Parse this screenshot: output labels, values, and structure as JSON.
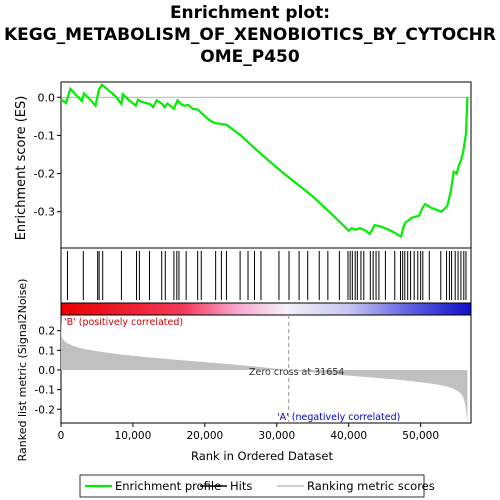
{
  "title_lines": [
    "Enrichment plot:",
    "KEGG_METABOLISM_OF_XENOBIOTICS_BY_CYTOCHR",
    "OME_P450"
  ],
  "colors": {
    "profile": "#00ee00",
    "hits": "#000000",
    "metric_fill": "#c0c0c0",
    "positive_label": "#d20000",
    "negative_label": "#0000c8"
  },
  "chart_data": [
    {
      "type": "line",
      "name": "enrichment-plot",
      "ylabel": "Enrichment score (ES)",
      "xlim": [
        0,
        57000
      ],
      "ylim": [
        -0.395,
        0.04
      ],
      "yticks": [
        0.0,
        -0.1,
        -0.2,
        -0.3
      ],
      "ytick_labels": [
        "0.0",
        "-0.1",
        "-0.2",
        "-0.3"
      ],
      "series": [
        {
          "name": "Enrichment profile",
          "x": [
            0,
            700,
            1300,
            2000,
            2900,
            3200,
            4000,
            4800,
            5100,
            5250,
            5700,
            6200,
            7000,
            7600,
            8400,
            8600,
            9300,
            10400,
            10700,
            11200,
            12400,
            12800,
            13300,
            14100,
            14400,
            14800,
            15700,
            16200,
            16700,
            17100,
            17700,
            18300,
            19000,
            20000,
            20800,
            21500,
            23000,
            25000,
            27000,
            29000,
            31000,
            33000,
            35000,
            37000,
            38500,
            40000,
            40400,
            40900,
            41600,
            42400,
            42900,
            43300,
            43600,
            44300,
            45300,
            46400,
            46800,
            47300,
            47600,
            47900,
            48300,
            48700,
            49300,
            49800,
            50200,
            50600,
            51500,
            52900,
            53700,
            54200,
            54600,
            55000,
            55300,
            55600,
            55900,
            56100,
            56300,
            56450,
            56500
          ],
          "y": [
            -0.005,
            -0.015,
            0.022,
            0.008,
            -0.01,
            0.01,
            -0.005,
            -0.022,
            0.005,
            0.02,
            0.033,
            0.025,
            0.012,
            0.002,
            -0.018,
            0.008,
            -0.005,
            -0.022,
            -0.006,
            -0.012,
            -0.018,
            -0.026,
            -0.008,
            -0.018,
            -0.026,
            -0.016,
            -0.03,
            -0.008,
            -0.018,
            -0.022,
            -0.02,
            -0.03,
            -0.032,
            -0.05,
            -0.062,
            -0.068,
            -0.072,
            -0.1,
            -0.135,
            -0.168,
            -0.2,
            -0.23,
            -0.26,
            -0.295,
            -0.322,
            -0.35,
            -0.343,
            -0.347,
            -0.343,
            -0.35,
            -0.358,
            -0.346,
            -0.335,
            -0.338,
            -0.345,
            -0.355,
            -0.36,
            -0.365,
            -0.34,
            -0.328,
            -0.323,
            -0.316,
            -0.313,
            -0.31,
            -0.292,
            -0.28,
            -0.29,
            -0.3,
            -0.285,
            -0.245,
            -0.195,
            -0.2,
            -0.18,
            -0.165,
            -0.145,
            -0.12,
            -0.095,
            -0.03,
            0.0
          ]
        }
      ]
    },
    {
      "type": "hits",
      "name": "hits-strip",
      "legend": "Hits",
      "x": [
        900,
        3100,
        5100,
        5300,
        5800,
        8400,
        10500,
        10900,
        12300,
        14000,
        14500,
        15700,
        16100,
        16400,
        17400,
        19000,
        19500,
        21500,
        22300,
        23000,
        24900,
        26000,
        26900,
        27800,
        30300,
        31700,
        33100,
        34300,
        35900,
        37100,
        38700,
        39900,
        40200,
        40500,
        40900,
        41200,
        41700,
        42100,
        43000,
        43400,
        43800,
        44200,
        45100,
        46400,
        47200,
        47500,
        47800,
        48200,
        48600,
        49100,
        49600,
        50000,
        50300,
        51200,
        52800,
        53600,
        54000,
        54300,
        54800,
        55200,
        55600,
        56000,
        56300
      ]
    },
    {
      "type": "area",
      "name": "ranked-list-metric",
      "xlabel": "Rank in Ordered Dataset",
      "ylabel": "Ranked list metric (Signal2Noise)",
      "xlim": [
        0,
        57000
      ],
      "ylim": [
        -0.27,
        0.28
      ],
      "xticks": [
        0,
        10000,
        20000,
        30000,
        40000,
        50000
      ],
      "xtick_labels": [
        "0",
        "10,000",
        "20,000",
        "30,000",
        "40,000",
        "50,000"
      ],
      "yticks": [
        0.2,
        0.1,
        0.0,
        -0.1,
        -0.2
      ],
      "ytick_labels": [
        "0.2",
        "0.1",
        "0.0",
        "-0.1",
        "-0.2"
      ],
      "x": [
        0,
        100,
        300,
        700,
        1500,
        3000,
        5000,
        8000,
        12000,
        16000,
        20000,
        24000,
        28000,
        31654,
        35000,
        39000,
        43000,
        47000,
        50000,
        52000,
        53500,
        54500,
        55300,
        55800,
        56100,
        56300,
        56500
      ],
      "y": [
        0.26,
        0.17,
        0.155,
        0.14,
        0.125,
        0.108,
        0.095,
        0.08,
        0.065,
        0.052,
        0.04,
        0.028,
        0.014,
        0.0,
        -0.013,
        -0.026,
        -0.038,
        -0.05,
        -0.062,
        -0.072,
        -0.083,
        -0.095,
        -0.11,
        -0.13,
        -0.16,
        -0.2,
        -0.27
      ],
      "zero_cross": 31654,
      "zero_cross_label": "Zero cross at 31654",
      "positive_label": "'B' (positively correlated)",
      "negative_label": "'A' (negatively correlated)"
    }
  ],
  "legend": {
    "profile_label": "Enrichment profile",
    "hits_label": "Hits",
    "metric_label": "Ranking metric scores"
  }
}
